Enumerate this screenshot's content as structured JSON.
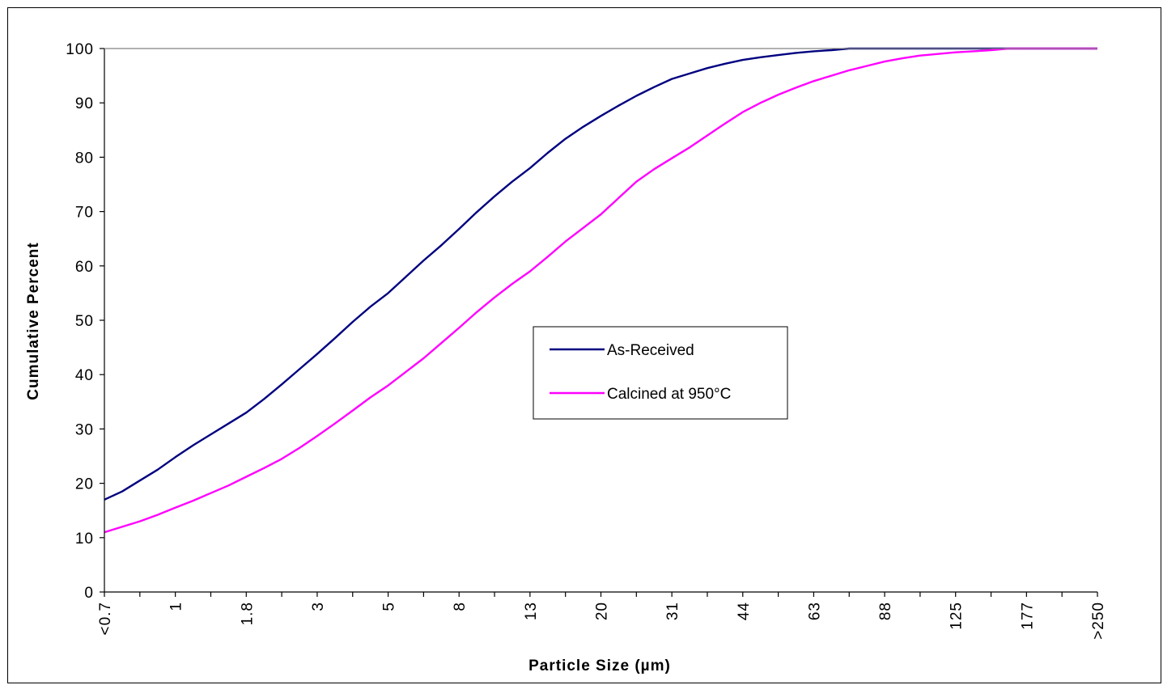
{
  "chart_data": {
    "type": "line",
    "xlabel": "Particle Size (µm)",
    "ylabel": "Cumulative Percent",
    "ylim": [
      0,
      100
    ],
    "yticks": [
      "0",
      "10",
      "20",
      "30",
      "40",
      "50",
      "60",
      "70",
      "80",
      "90",
      "100"
    ],
    "xtick_labels": [
      "<0.7",
      "1",
      "1.8",
      "3",
      "5",
      "8",
      "13",
      "20",
      "31",
      "44",
      "63",
      "88",
      "125",
      "177",
      ">250"
    ],
    "grid": false,
    "legend_position": "center-right",
    "series": [
      {
        "name": "As-Received",
        "color": "#000080",
        "values": [
          17,
          18.5,
          20.5,
          22.5,
          24.8,
          27,
          29,
          31,
          33,
          35.5,
          38.2,
          41,
          43.8,
          46.7,
          49.7,
          52.5,
          55,
          58,
          61,
          63.8,
          66.8,
          69.9,
          72.8,
          75.5,
          78,
          80.8,
          83.4,
          85.6,
          87.6,
          89.5,
          91.3,
          92.9,
          94.4,
          95.4,
          96.4,
          97.2,
          97.9,
          98.4,
          98.8,
          99.2,
          99.5,
          99.7,
          100,
          100,
          100,
          100,
          100,
          100,
          100,
          100,
          100,
          100,
          100,
          100,
          100,
          100,
          100
        ]
      },
      {
        "name": "Calcined at 950°C",
        "color": "#ff00ff",
        "values": [
          11,
          12,
          13,
          14.2,
          15.5,
          16.8,
          18.2,
          19.6,
          21.2,
          22.8,
          24.5,
          26.5,
          28.7,
          31,
          33.4,
          35.8,
          38,
          40.5,
          43,
          45.8,
          48.6,
          51.5,
          54.2,
          56.7,
          59,
          61.7,
          64.5,
          67,
          69.5,
          72.5,
          75.5,
          77.8,
          79.8,
          81.8,
          84,
          86.2,
          88.3,
          90,
          91.5,
          92.8,
          94,
          95,
          96,
          96.8,
          97.6,
          98.2,
          98.7,
          99,
          99.3,
          99.5,
          99.7,
          100,
          100,
          100,
          100,
          100,
          100
        ]
      }
    ]
  }
}
